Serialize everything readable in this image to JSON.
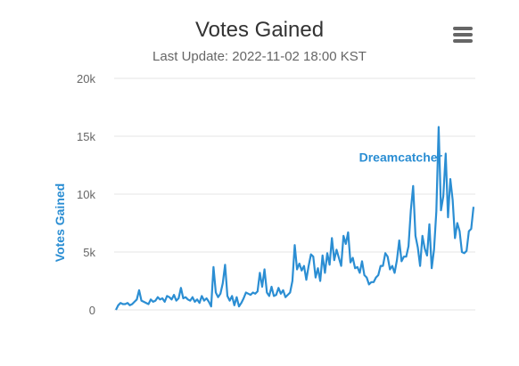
{
  "menu_icon": "hamburger-menu-icon",
  "chart_data": {
    "type": "line",
    "title": "Votes Gained",
    "subtitle": "Last Update: 2022-11-02 18:00 KST",
    "ylabel": "Votes Gained",
    "xlabel": "",
    "ylim": [
      -5000,
      20000
    ],
    "y_ticks": [
      0,
      5000,
      10000,
      15000,
      20000
    ],
    "y_tick_labels": [
      "0",
      "5k",
      "10k",
      "15k",
      "20k"
    ],
    "grid": true,
    "series": [
      {
        "name": "Dreamcatcher",
        "color": "#2b8ed3",
        "values": [
          0,
          400,
          600,
          500,
          500,
          600,
          400,
          500,
          700,
          900,
          1700,
          800,
          700,
          600,
          500,
          900,
          700,
          800,
          1100,
          900,
          1000,
          700,
          1200,
          1100,
          900,
          1300,
          800,
          1000,
          1900,
          1000,
          1100,
          900,
          800,
          1100,
          700,
          900,
          600,
          1200,
          800,
          1000,
          700,
          300,
          3700,
          1500,
          1100,
          1400,
          2300,
          3900,
          1200,
          800,
          1200,
          400,
          1100,
          300,
          600,
          1000,
          1500,
          1400,
          1300,
          1500,
          1400,
          1600,
          3200,
          2000,
          3500,
          1500,
          1200,
          2000,
          1200,
          1300,
          1900,
          1400,
          1700,
          1100,
          1300,
          1500,
          2500,
          5600,
          3500,
          4000,
          3400,
          3800,
          2600,
          3800,
          4800,
          4600,
          2800,
          3600,
          2500,
          4700,
          3200,
          4900,
          3900,
          6200,
          4300,
          5200,
          4500,
          3800,
          6400,
          5700,
          6700,
          4100,
          4500,
          3600,
          3700,
          3200,
          4200,
          3000,
          2800,
          2200,
          2400,
          2400,
          2800,
          3000,
          3800,
          3800,
          4900,
          4600,
          3500,
          3800,
          3200,
          4300,
          6000,
          4200,
          4600,
          4600,
          5500,
          8600,
          10700,
          6400,
          5400,
          3800,
          6400,
          5300,
          4700,
          7400,
          3600,
          5200,
          8500,
          15800,
          8600,
          9800,
          13500,
          8000,
          11300,
          9500,
          6200,
          7500,
          6800,
          5000,
          4900,
          5100,
          6800,
          7000,
          8900
        ]
      }
    ]
  }
}
